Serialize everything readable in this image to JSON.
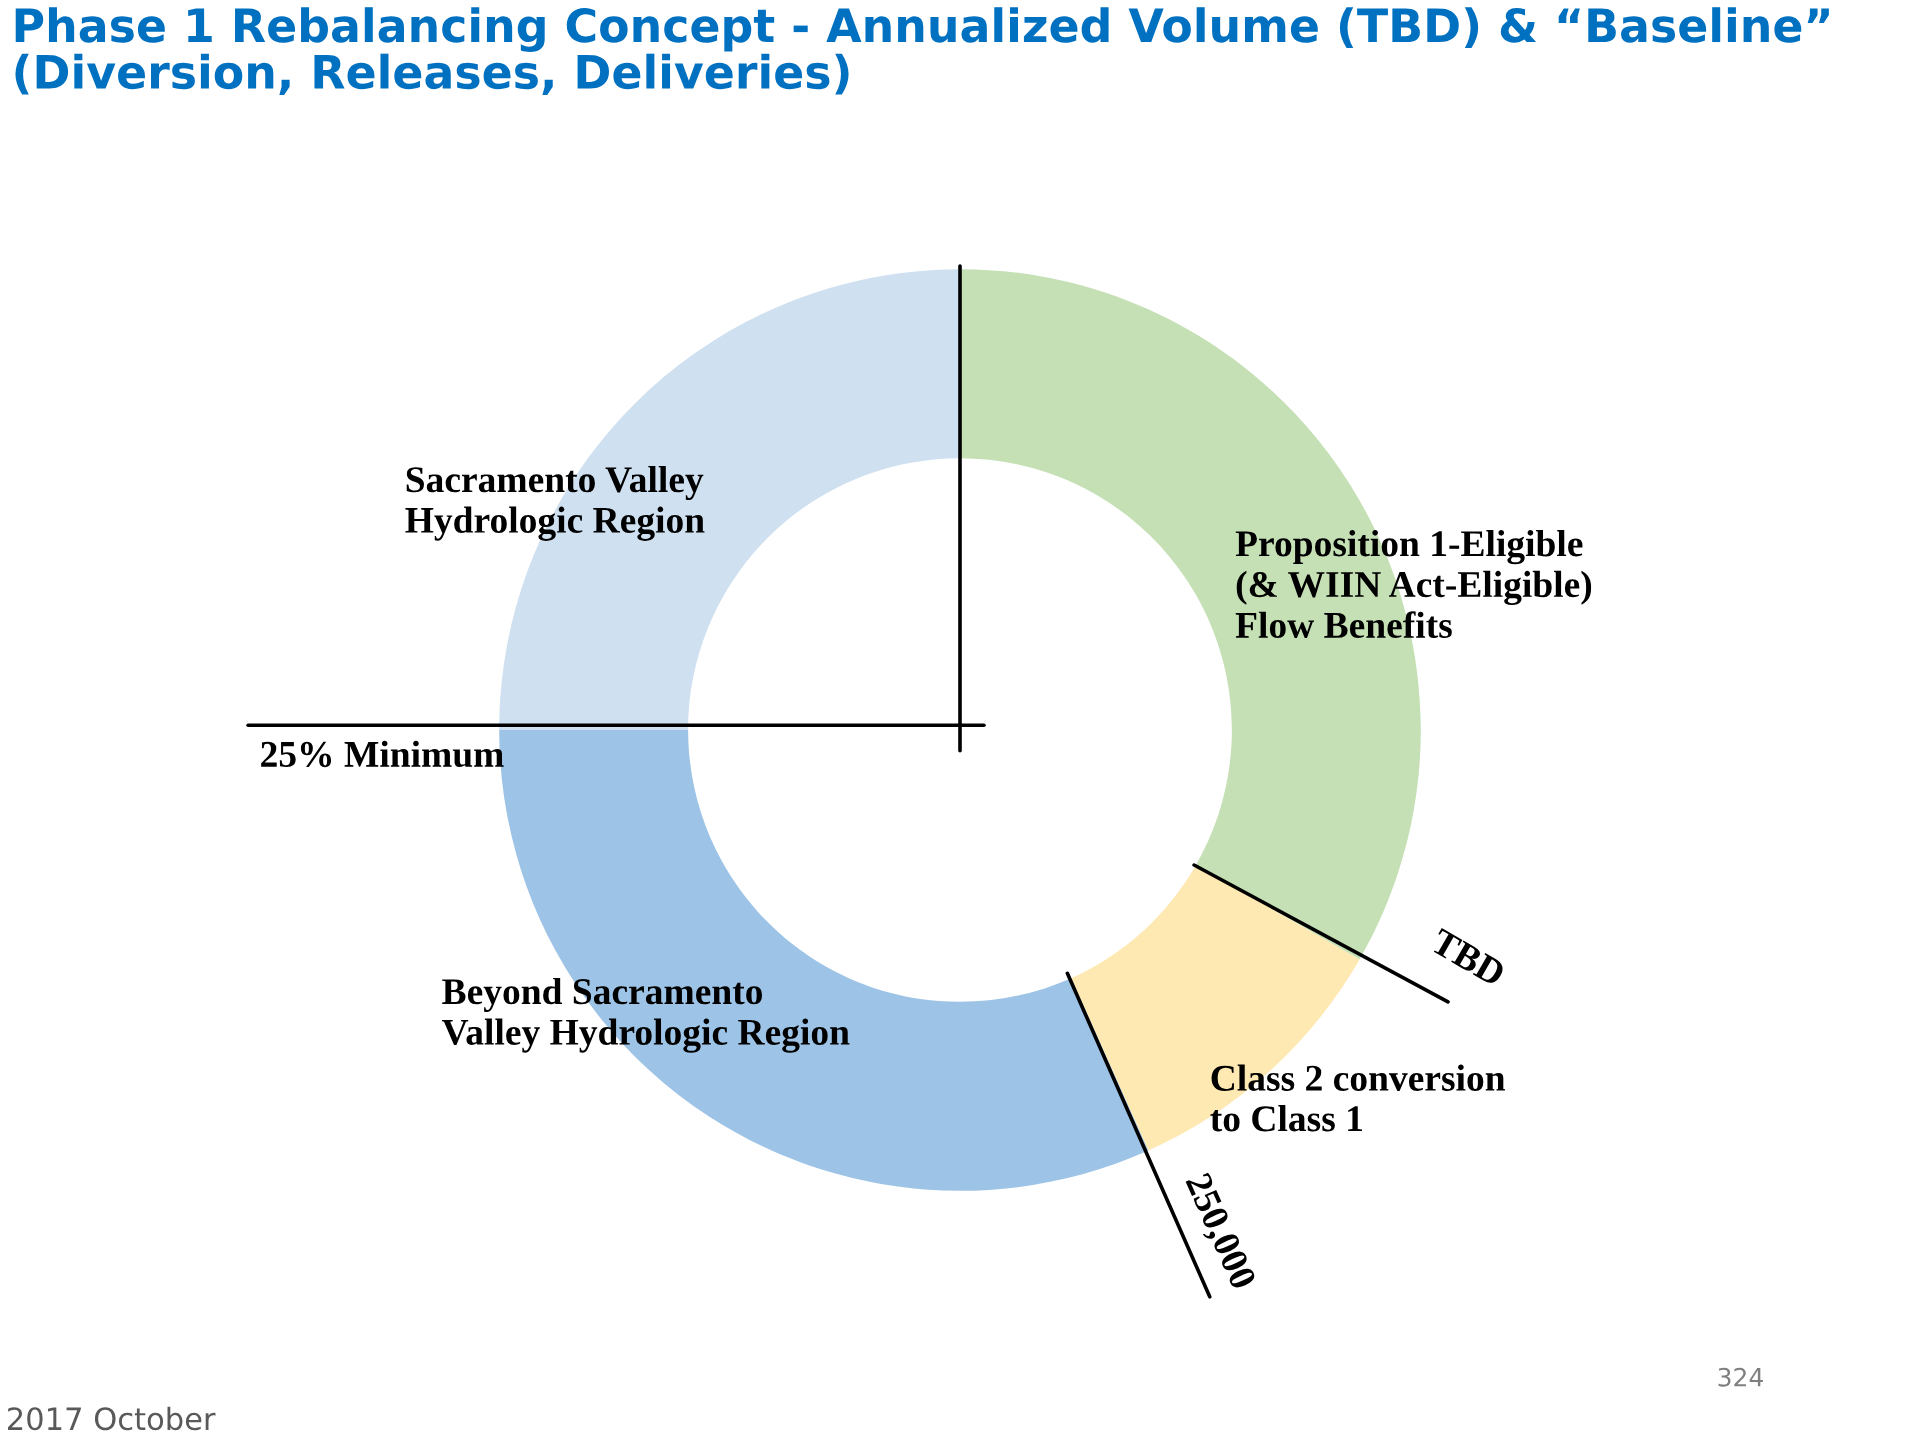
{
  "chart_data": {
    "type": "donut",
    "title": "Phase 1 Rebalancing Concept - Annualized Volume (TBD) & “Baseline” (Diversion, Releases, Deliveries)",
    "categories": [
      "Proposition 1-Eligible\n(& WIIN Act-Eligible)\nFlow Benefits",
      "Class 2 conversion\nto Class 1",
      "Beyond Sacramento\nValley Hydrologic Region",
      "Sacramento Valley\nHydrologic Region"
    ],
    "values": [
      33.3,
      10.0,
      31.7,
      25.0
    ],
    "colors": [
      "#c5e0b4",
      "#ffe9b3",
      "#9dc3e6",
      "#cfe0f1"
    ],
    "annotations": [
      "TBD",
      "250,000",
      "25% Minimum",
      "2017 October",
      "324"
    ]
  }
}
